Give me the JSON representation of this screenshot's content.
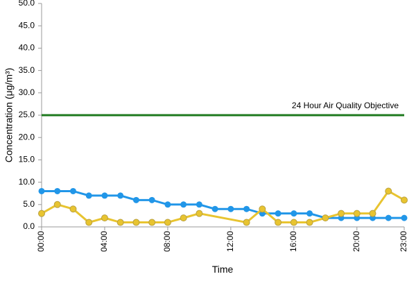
{
  "chart_data": {
    "type": "line",
    "y_label": "Concentration (μg/m³)",
    "x_label": "Time",
    "xlim": [
      0,
      23
    ],
    "xticks": [
      {
        "value": 0,
        "label": "00:00"
      },
      {
        "value": 4,
        "label": "04:00"
      },
      {
        "value": 8,
        "label": "08:00"
      },
      {
        "value": 12,
        "label": "12:00"
      },
      {
        "value": 16,
        "label": "16:00"
      },
      {
        "value": 20,
        "label": "20:00"
      },
      {
        "value": 23,
        "label": "23:00"
      }
    ],
    "ylim": [
      0,
      50
    ],
    "yticks": [
      {
        "value": 0,
        "label": "0.0"
      },
      {
        "value": 5,
        "label": "5.0"
      },
      {
        "value": 10,
        "label": "10.0"
      },
      {
        "value": 15,
        "label": "15.0"
      },
      {
        "value": 20,
        "label": "20.0"
      },
      {
        "value": 25,
        "label": "25.0"
      },
      {
        "value": 30,
        "label": "30.0"
      },
      {
        "value": 35,
        "label": "35.0"
      },
      {
        "value": 40,
        "label": "40.0"
      },
      {
        "value": 45,
        "label": "45.0"
      },
      {
        "value": 50,
        "label": "50.0"
      }
    ],
    "reference_line": {
      "value": 25,
      "label": "24 Hour Air Quality Objective",
      "color": "#1e7a1e"
    },
    "series": [
      {
        "color": "#2196e8",
        "x": [
          0,
          1,
          2,
          3,
          4,
          5,
          6,
          7,
          8,
          9,
          10,
          11,
          12,
          13,
          14,
          15,
          16,
          17,
          18,
          19,
          20,
          21,
          22,
          23
        ],
        "values": [
          8,
          8,
          8,
          7,
          7,
          7,
          6,
          6,
          5,
          5,
          5,
          4,
          4,
          4,
          3,
          3,
          3,
          3,
          2,
          2,
          2,
          2,
          2,
          2
        ]
      },
      {
        "color": "#e8c430",
        "x": [
          0,
          1,
          2,
          3,
          4,
          5,
          6,
          7,
          8,
          9,
          10,
          13,
          14,
          15,
          16,
          17,
          18,
          19,
          20,
          21,
          22,
          23
        ],
        "values": [
          3,
          5,
          4,
          1,
          2,
          1,
          1,
          1,
          1,
          2,
          3,
          1,
          4,
          1,
          1,
          1,
          2,
          3,
          3,
          3,
          8,
          6
        ]
      }
    ]
  }
}
